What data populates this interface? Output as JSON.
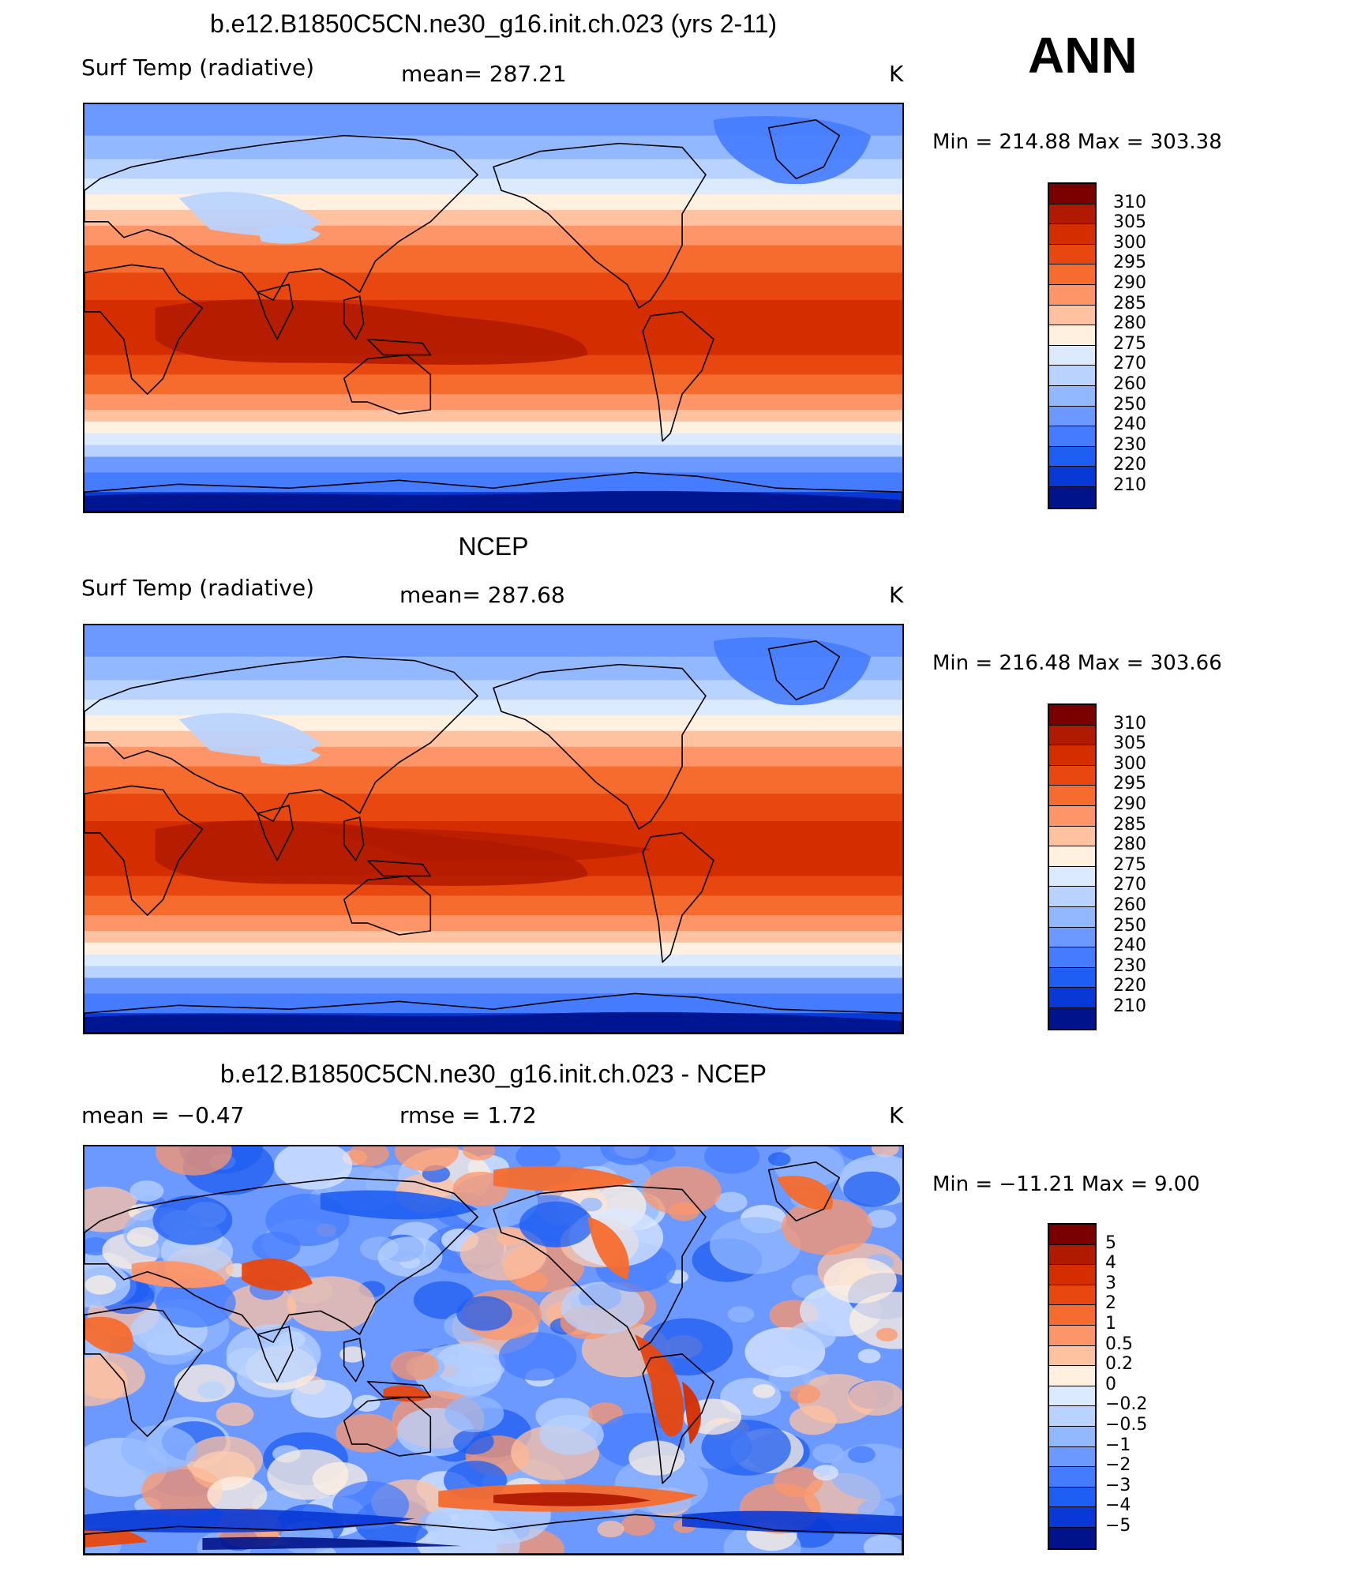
{
  "season": "ANN",
  "panels": [
    {
      "title": "b.e12.B1850C5CN.ne30_g16.init.ch.023 (yrs 2-11)",
      "left_label": "Surf Temp (radiative)",
      "center_label": "mean= 287.21",
      "units": "K",
      "minmax": "Min = 214.88 Max = 303.38",
      "map_type": "model",
      "colorbar": {
        "levels": [
          "310",
          "305",
          "300",
          "295",
          "290",
          "285",
          "280",
          "275",
          "270",
          "260",
          "250",
          "240",
          "230",
          "220",
          "210"
        ],
        "colors": [
          "#7a0000",
          "#b01a00",
          "#d42e00",
          "#e8470f",
          "#f66c2e",
          "#fd9568",
          "#ffc2a0",
          "#fff0e0",
          "#dceaff",
          "#b8d3ff",
          "#92b8ff",
          "#6b99ff",
          "#457cff",
          "#1f5ef2",
          "#0838d6",
          "#00138a"
        ]
      }
    },
    {
      "title": "NCEP",
      "left_label": "Surf Temp (radiative)",
      "center_label": "mean= 287.68",
      "units": "K",
      "minmax": "Min = 216.48 Max = 303.66",
      "map_type": "obs",
      "colorbar": {
        "levels": [
          "310",
          "305",
          "300",
          "295",
          "290",
          "285",
          "280",
          "275",
          "270",
          "260",
          "250",
          "240",
          "230",
          "220",
          "210"
        ],
        "colors": [
          "#7a0000",
          "#b01a00",
          "#d42e00",
          "#e8470f",
          "#f66c2e",
          "#fd9568",
          "#ffc2a0",
          "#fff0e0",
          "#dceaff",
          "#b8d3ff",
          "#92b8ff",
          "#6b99ff",
          "#457cff",
          "#1f5ef2",
          "#0838d6",
          "#00138a"
        ]
      }
    },
    {
      "title": "b.e12.B1850C5CN.ne30_g16.init.ch.023 - NCEP",
      "left_label": "mean =   −0.47",
      "center_label": "rmse =    1.72",
      "units": "K",
      "minmax": "Min = −11.21 Max =    9.00",
      "map_type": "diff",
      "colorbar": {
        "levels": [
          "5",
          "4",
          "3",
          "2",
          "1",
          "0.5",
          "0.2",
          "0",
          "−0.2",
          "−0.5",
          "−1",
          "−2",
          "−3",
          "−4",
          "−5"
        ],
        "colors": [
          "#7a0000",
          "#b01a00",
          "#d42e00",
          "#e8470f",
          "#f66c2e",
          "#fd9568",
          "#ffc2a0",
          "#fff0e0",
          "#dceaff",
          "#b8d3ff",
          "#92b8ff",
          "#6b99ff",
          "#457cff",
          "#1f5ef2",
          "#0838d6",
          "#00138a"
        ]
      }
    }
  ]
}
